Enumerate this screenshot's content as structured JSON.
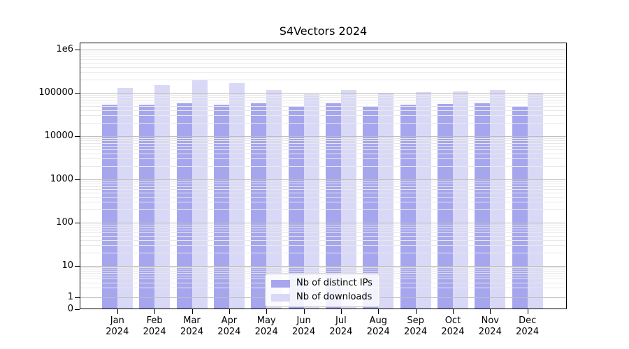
{
  "title": "S4Vectors 2024",
  "chart_data": {
    "type": "bar",
    "title": "S4Vectors 2024",
    "xlabel": "",
    "ylabel": "",
    "yscale": "symlog",
    "grid": true,
    "legend_position": "lower center",
    "categories": [
      "Jan 2024",
      "Feb 2024",
      "Mar 2024",
      "Apr 2024",
      "May 2024",
      "Jun 2024",
      "Jul 2024",
      "Aug 2024",
      "Sep 2024",
      "Oct 2024",
      "Nov 2024",
      "Dec 2024"
    ],
    "series": [
      {
        "name": "Nb of distinct IPs",
        "color": "#a6a6ee",
        "values": [
          53000,
          53000,
          58000,
          54000,
          59000,
          48000,
          58000,
          49000,
          53000,
          56000,
          59000,
          50000
        ]
      },
      {
        "name": "Nb of downloads",
        "color": "#d9d9f7",
        "values": [
          132000,
          153000,
          205000,
          168000,
          116000,
          94000,
          118000,
          95000,
          102000,
          108000,
          116000,
          96000
        ]
      }
    ],
    "y_ticks": [
      1000000,
      100000,
      10000,
      1000,
      100,
      10,
      1,
      0
    ],
    "y_tick_labels": [
      "1e6",
      "100000",
      "10000",
      "1000",
      "100",
      "10",
      "1",
      "0"
    ],
    "ylim": [
      0,
      1450000
    ]
  }
}
